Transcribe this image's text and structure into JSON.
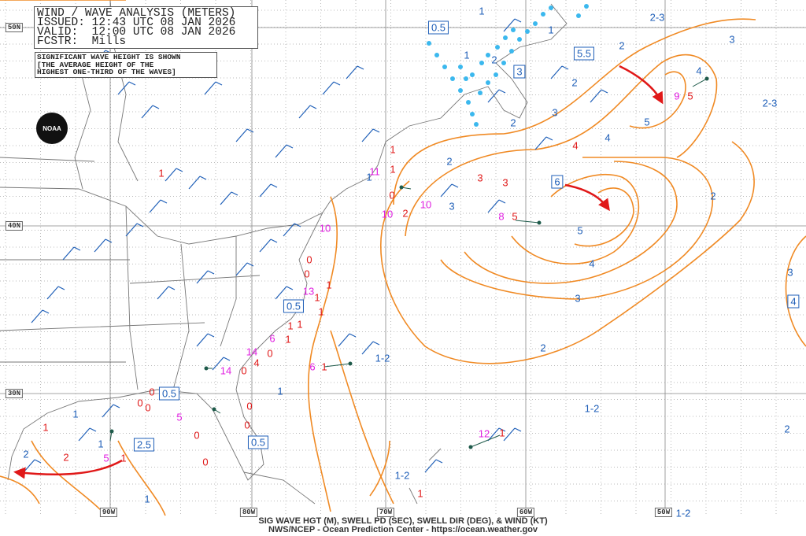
{
  "header": {
    "title": "WIND / WAVE ANALYSIS (METERS)",
    "issued": "ISSUED: 12:43 UTC 08 JAN 2026",
    "valid": "VALID:  12:00 UTC 08 JAN 2026",
    "forecaster": "FCSTR:  Mills"
  },
  "note": {
    "line1": "SIGNIFICANT WAVE HEIGHT IS SHOWN",
    "line2": "[THE AVERAGE HEIGHT OF THE",
    "line3": "HIGHEST ONE-THIRD OF THE WAVES]"
  },
  "logo_text": "NOAA",
  "latitudes": [
    "50N",
    "40N",
    "30N"
  ],
  "longitudes": [
    "90W",
    "80W",
    "70W",
    "60W",
    "50W"
  ],
  "footer": {
    "line1": "SIG WAVE HGT (M), SWELL PD (SEC), SWELL DIR (DEG), & WIND (KT)",
    "line2": "NWS/NCEP - Ocean Prediction Center - https://ocean.weather.gov"
  },
  "colors": {
    "contour": "#f08a24",
    "wave_label": "#1f5fb8",
    "sea_state": "#e01818",
    "swell_period": "#e020e0",
    "arrow": "#e01818",
    "wind_barb": "#1f5fb8",
    "grid": "#bbbbbb"
  },
  "boxed_centers": [
    "0.5",
    "3",
    "5.5",
    "6",
    "0.5",
    "0.5",
    "0.5",
    "2.5",
    "4"
  ],
  "contour_labels": [
    "2-3",
    "3",
    "2",
    "1",
    "1",
    "2",
    "1",
    "4",
    "2",
    "3",
    "2",
    "5",
    "4",
    "2-3",
    "2",
    "1",
    "3",
    "5",
    "4",
    "3",
    "2",
    "3",
    "2",
    "1-2",
    "1",
    "1-2",
    "2",
    "1",
    "1",
    "2",
    "1",
    "1-2",
    "1-2"
  ],
  "point_values": [
    {
      "t": "9",
      "c": "mag"
    },
    {
      "t": "5",
      "c": "red"
    },
    {
      "t": "3",
      "c": "red"
    },
    {
      "t": "3",
      "c": "red"
    },
    {
      "t": "4",
      "c": "red"
    },
    {
      "t": "5",
      "c": "red"
    },
    {
      "t": "8",
      "c": "mag"
    },
    {
      "t": "10",
      "c": "mag"
    },
    {
      "t": "2",
      "c": "red"
    },
    {
      "t": "10",
      "c": "mag"
    },
    {
      "t": "11",
      "c": "mag"
    },
    {
      "t": "1",
      "c": "red"
    },
    {
      "t": "0",
      "c": "red"
    },
    {
      "t": "10",
      "c": "mag"
    },
    {
      "t": "0",
      "c": "red"
    },
    {
      "t": "0",
      "c": "red"
    },
    {
      "t": "1",
      "c": "red"
    },
    {
      "t": "13",
      "c": "mag"
    },
    {
      "t": "1",
      "c": "red"
    },
    {
      "t": "1",
      "c": "red"
    },
    {
      "t": "1",
      "c": "red"
    },
    {
      "t": "1",
      "c": "red"
    },
    {
      "t": "6",
      "c": "mag"
    },
    {
      "t": "1",
      "c": "red"
    },
    {
      "t": "0",
      "c": "red"
    },
    {
      "t": "14",
      "c": "mag"
    },
    {
      "t": "4",
      "c": "red"
    },
    {
      "t": "14",
      "c": "mag"
    },
    {
      "t": "0",
      "c": "red"
    },
    {
      "t": "6",
      "c": "mag"
    },
    {
      "t": "1",
      "c": "red"
    },
    {
      "t": "0",
      "c": "red"
    },
    {
      "t": "0",
      "c": "red"
    },
    {
      "t": "0",
      "c": "red"
    },
    {
      "t": "5",
      "c": "mag"
    },
    {
      "t": "0",
      "c": "red"
    },
    {
      "t": "0",
      "c": "red"
    },
    {
      "t": "0",
      "c": "red"
    },
    {
      "t": "0",
      "c": "red"
    },
    {
      "t": "1",
      "c": "red"
    },
    {
      "t": "2",
      "c": "red"
    },
    {
      "t": "5",
      "c": "mag"
    },
    {
      "t": "1",
      "c": "red"
    },
    {
      "t": "12",
      "c": "mag"
    },
    {
      "t": "1",
      "c": "red"
    },
    {
      "t": "1",
      "c": "red"
    },
    {
      "t": "1",
      "c": "red"
    },
    {
      "t": "1",
      "c": "red"
    }
  ]
}
